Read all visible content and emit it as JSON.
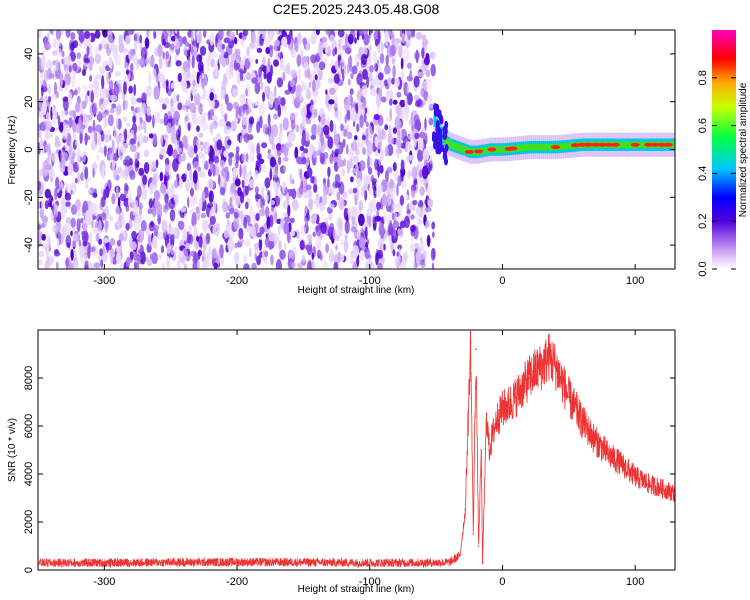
{
  "title": "C2E5.2025.243.05.48.G08",
  "chart_data": [
    {
      "type": "heatmap",
      "title": "C2E5.2025.243.05.48.G08",
      "xlabel": "Height of straight line (km)",
      "ylabel": "Frequency (Hz)",
      "xlim": [
        -350,
        130
      ],
      "ylim": [
        -50,
        50
      ],
      "xticks": [
        -300,
        -200,
        -100,
        0,
        100
      ],
      "yticks": [
        -40,
        -20,
        0,
        20,
        40
      ],
      "noise_region_x": [
        -350,
        -52
      ],
      "signal_line": {
        "x": [
          -52,
          -45,
          -40,
          -35,
          -30,
          -25,
          -20,
          -10,
          0,
          20,
          40,
          60,
          80,
          100,
          130
        ],
        "frequency": [
          12,
          4,
          2,
          1,
          0,
          -1,
          -1,
          0,
          0,
          1,
          1,
          2,
          2,
          2,
          2
        ]
      },
      "colorbar": {
        "label": "Normalized spectral amplitude",
        "ticks": [
          "0.0",
          "0.2",
          "0.4",
          "0.6",
          "0.8"
        ],
        "range": [
          0,
          1
        ]
      }
    },
    {
      "type": "line",
      "xlabel": "Height of straight line (km)",
      "ylabel": "SNR (10 * v/v)",
      "xlim": [
        -350,
        130
      ],
      "ylim": [
        0,
        10000
      ],
      "xticks": [
        -300,
        -200,
        -100,
        0,
        100
      ],
      "yticks": [
        0,
        2000,
        4000,
        6000,
        8000
      ],
      "color": "#ee3333",
      "series": [
        {
          "name": "SNR",
          "x": [
            -350,
            -300,
            -250,
            -200,
            -150,
            -100,
            -60,
            -40,
            -32,
            -28,
            -26,
            -24,
            -22,
            -20,
            -18,
            -16,
            -15,
            -12,
            -10,
            -5,
            0,
            5,
            10,
            15,
            20,
            25,
            30,
            35,
            40,
            50,
            60,
            70,
            80,
            90,
            100,
            110,
            120,
            130
          ],
          "values": [
            300,
            300,
            320,
            330,
            320,
            300,
            300,
            320,
            600,
            2500,
            6000,
            9500,
            1500,
            9200,
            1000,
            5000,
            300,
            6500,
            5000,
            6200,
            6700,
            6900,
            7200,
            7600,
            8000,
            8300,
            8500,
            8900,
            8500,
            7200,
            6200,
            5400,
            4800,
            4400,
            3900,
            3600,
            3400,
            3200
          ]
        }
      ]
    }
  ]
}
